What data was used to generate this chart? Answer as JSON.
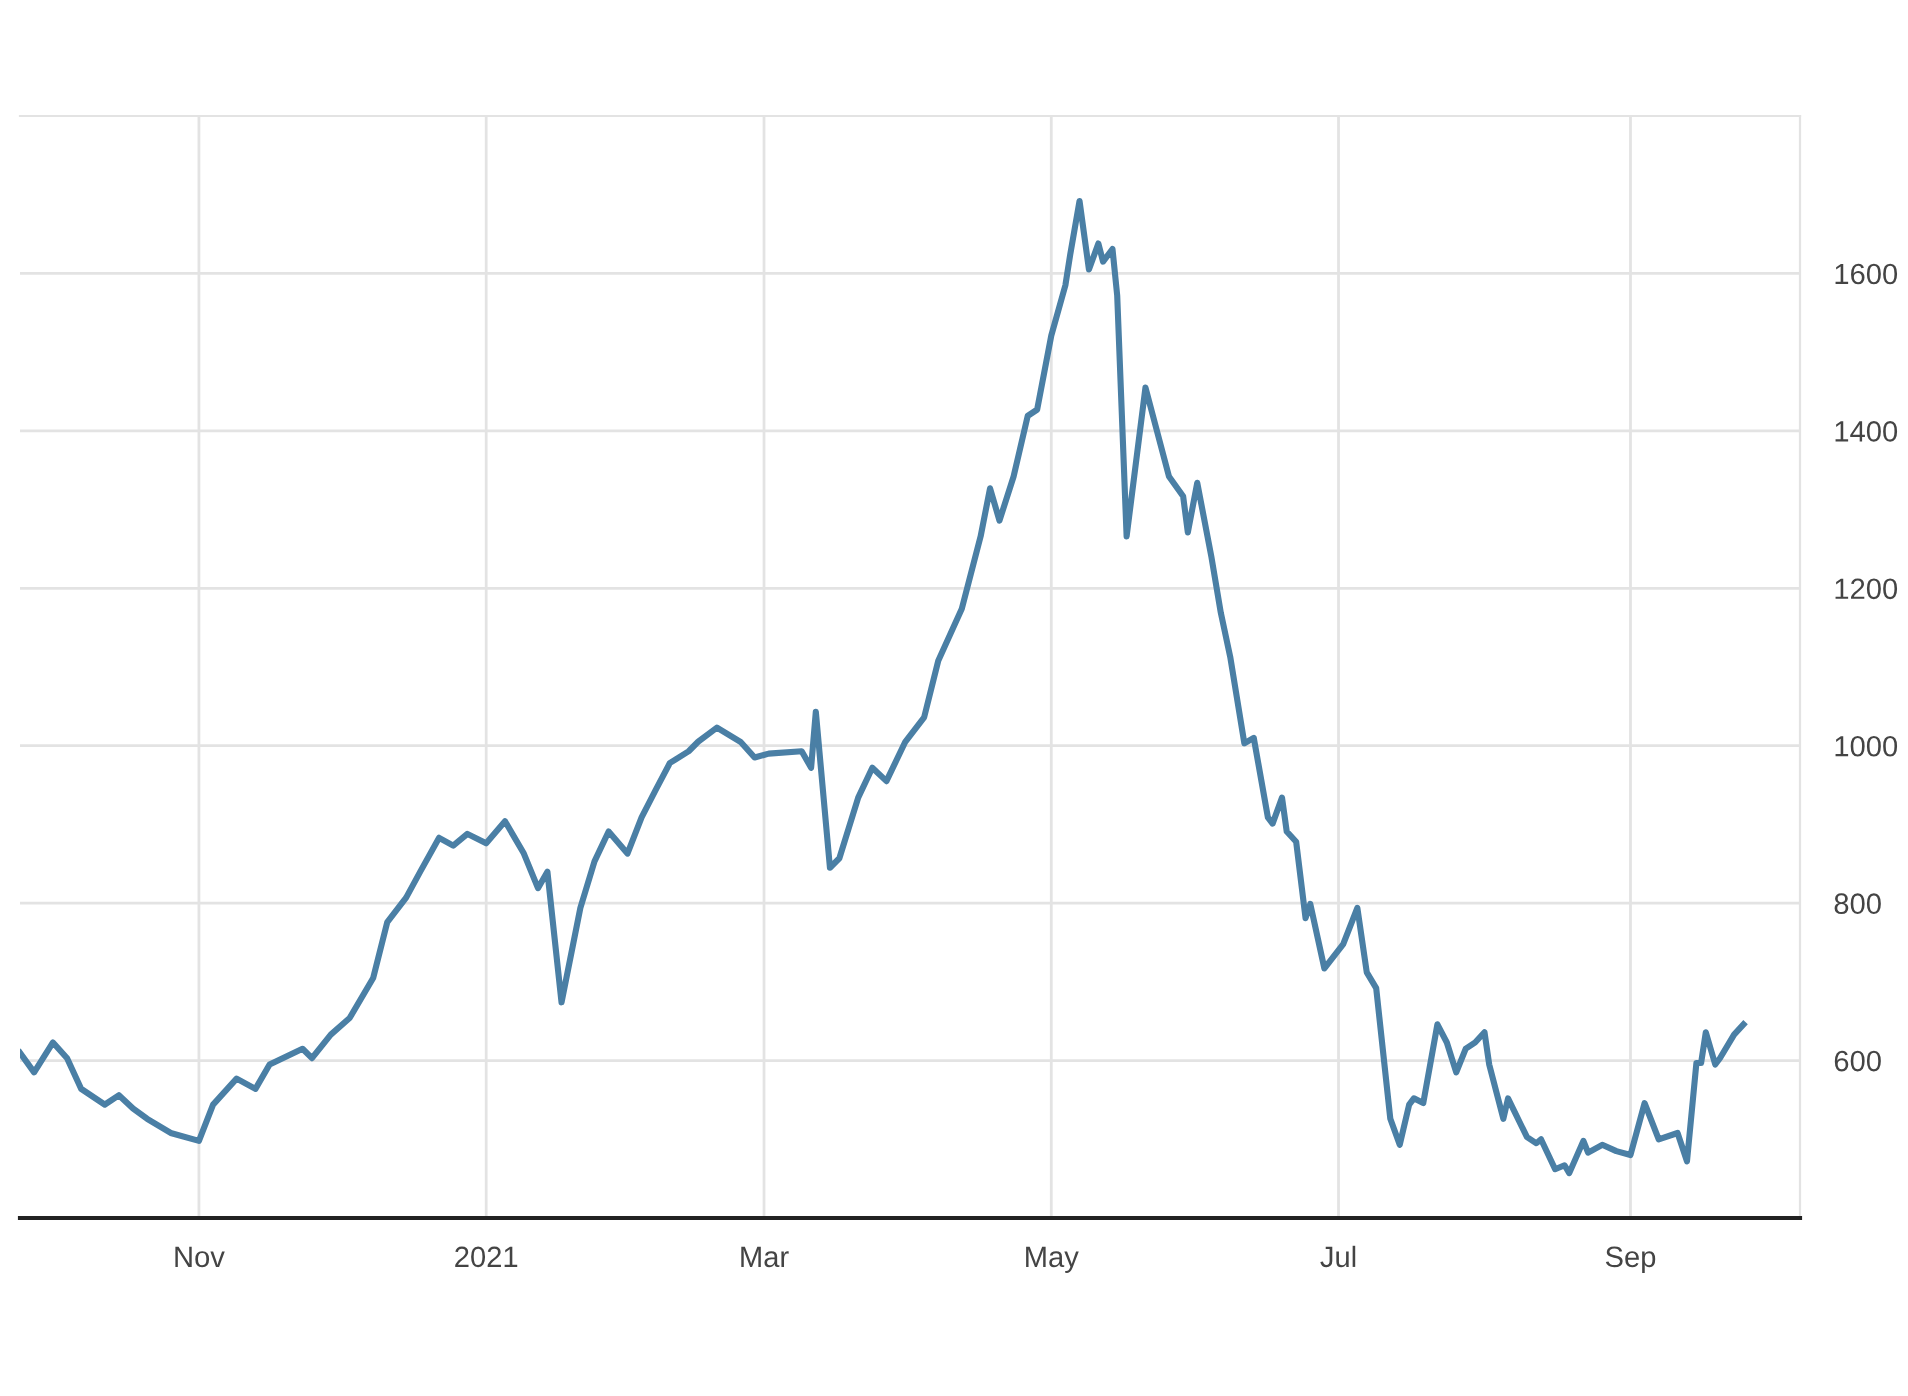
{
  "chart_data": {
    "type": "line",
    "x": [
      "2020-09-24",
      "2020-09-27",
      "2020-10-01",
      "2020-10-04",
      "2020-10-07",
      "2020-10-12",
      "2020-10-15",
      "2020-10-18",
      "2020-10-21",
      "2020-10-26",
      "2020-11-01",
      "2020-11-04",
      "2020-11-09",
      "2020-11-13",
      "2020-11-16",
      "2020-11-23",
      "2020-11-25",
      "2020-11-29",
      "2020-12-03",
      "2020-12-08",
      "2020-12-11",
      "2020-12-15",
      "2020-12-18",
      "2020-12-22",
      "2020-12-25",
      "2020-12-28",
      "2021-01-01",
      "2021-01-05",
      "2021-01-09",
      "2021-01-12",
      "2021-01-14",
      "2021-01-17",
      "2021-01-21",
      "2021-01-24",
      "2021-01-27",
      "2021-01-31",
      "2021-02-03",
      "2021-02-06",
      "2021-02-09",
      "2021-02-13",
      "2021-02-15",
      "2021-02-19",
      "2021-02-24",
      "2021-02-27",
      "2021-03-02",
      "2021-03-09",
      "2021-03-11",
      "2021-03-12",
      "2021-03-15",
      "2021-03-17",
      "2021-03-21",
      "2021-03-24",
      "2021-03-27",
      "2021-03-31",
      "2021-04-04",
      "2021-04-07",
      "2021-04-12",
      "2021-04-16",
      "2021-04-18",
      "2021-04-20",
      "2021-04-23",
      "2021-04-26",
      "2021-04-28",
      "2021-05-01",
      "2021-05-04",
      "2021-05-05",
      "2021-05-07",
      "2021-05-09",
      "2021-05-11",
      "2021-05-12",
      "2021-05-14",
      "2021-05-15",
      "2021-05-17",
      "2021-05-21",
      "2021-05-26",
      "2021-05-29",
      "2021-05-30",
      "2021-06-01",
      "2021-06-04",
      "2021-06-06",
      "2021-06-08",
      "2021-06-11",
      "2021-06-13",
      "2021-06-16",
      "2021-06-17",
      "2021-06-19",
      "2021-06-20",
      "2021-06-22",
      "2021-06-24",
      "2021-06-25",
      "2021-06-28",
      "2021-07-02",
      "2021-07-05",
      "2021-07-07",
      "2021-07-09",
      "2021-07-12",
      "2021-07-14",
      "2021-07-16",
      "2021-07-17",
      "2021-07-19",
      "2021-07-22",
      "2021-07-24",
      "2021-07-26",
      "2021-07-28",
      "2021-07-30",
      "2021-08-01",
      "2021-08-02",
      "2021-08-05",
      "2021-08-06",
      "2021-08-10",
      "2021-08-12",
      "2021-08-13",
      "2021-08-16",
      "2021-08-18",
      "2021-08-19",
      "2021-08-22",
      "2021-08-23",
      "2021-08-26",
      "2021-08-29",
      "2021-09-01",
      "2021-09-04",
      "2021-09-07",
      "2021-09-11",
      "2021-09-13",
      "2021-09-15",
      "2021-09-16",
      "2021-09-17",
      "2021-09-19",
      "2021-09-20",
      "2021-09-23",
      "2021-09-25"
    ],
    "series": [
      {
        "color": "#4a7fa5",
        "values": [
          610,
          585,
          623,
          603,
          564,
          544,
          556,
          539,
          526,
          508,
          498,
          544,
          577,
          564,
          595,
          615,
          603,
          633,
          654,
          705,
          776,
          807,
          840,
          883,
          873,
          888,
          876,
          904,
          863,
          819,
          840,
          674,
          794,
          853,
          891,
          863,
          909,
          944,
          978,
          993,
          1005,
          1023,
          1005,
          985,
          990,
          993,
          972,
          1043,
          845,
          857,
          934,
          972,
          955,
          1005,
          1036,
          1108,
          1174,
          1266,
          1327,
          1286,
          1342,
          1419,
          1427,
          1521,
          1585,
          1623,
          1692,
          1605,
          1638,
          1615,
          1631,
          1572,
          1266,
          1455,
          1342,
          1317,
          1271,
          1334,
          1240,
          1169,
          1113,
          1003,
          1010,
          909,
          901,
          934,
          891,
          878,
          781,
          799,
          717,
          748,
          794,
          712,
          692,
          526,
          493,
          544,
          552,
          546,
          646,
          623,
          585,
          615,
          623,
          636,
          595,
          526,
          552,
          503,
          495,
          500,
          462,
          467,
          457,
          498,
          483,
          493,
          485,
          480,
          546,
          500,
          508,
          472,
          597,
          597,
          636,
          595,
          603,
          633,
          646
        ]
      }
    ],
    "xlim": [
      "2020-09-24",
      "2021-10-07"
    ],
    "xticks": [
      {
        "value": "2020-11-01",
        "label": "Nov"
      },
      {
        "value": "2021-01-01",
        "label": "2021"
      },
      {
        "value": "2021-03-01",
        "label": "Mar"
      },
      {
        "value": "2021-05-01",
        "label": "May"
      },
      {
        "value": "2021-07-01",
        "label": "Jul"
      },
      {
        "value": "2021-09-01",
        "label": "Sep"
      }
    ],
    "ylim": [
      400,
      1800
    ],
    "yticks": [
      600,
      800,
      1000,
      1200,
      1400,
      1600
    ],
    "grid": true,
    "marker": "none",
    "line_style": "solid"
  }
}
